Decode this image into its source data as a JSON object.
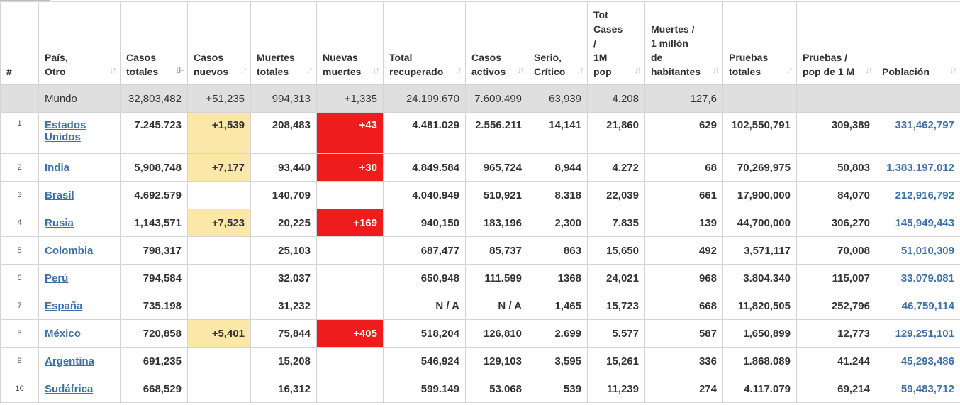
{
  "columns": [
    {
      "label_lines": [
        "#"
      ],
      "sort": ""
    },
    {
      "label_lines": [
        "País,",
        "Otro"
      ],
      "sort": "↓↑"
    },
    {
      "label_lines": [
        "Casos",
        "totales"
      ],
      "sort": "↓F"
    },
    {
      "label_lines": [
        "Casos",
        "nuevos"
      ],
      "sort": "↓↑"
    },
    {
      "label_lines": [
        "Muertes",
        "totales"
      ],
      "sort": "↓↑"
    },
    {
      "label_lines": [
        "Nuevas",
        "muertes"
      ],
      "sort": "↓↑"
    },
    {
      "label_lines": [
        "Total",
        "recuperado"
      ],
      "sort": "↓↑"
    },
    {
      "label_lines": [
        "Casos",
        "activos"
      ],
      "sort": "↓↑"
    },
    {
      "label_lines": [
        "Serio,",
        "Crítico"
      ],
      "sort": "↓↑"
    },
    {
      "label_lines": [
        "Tot",
        "Cases",
        "/",
        "1M",
        "pop"
      ],
      "sort": "↓↑"
    },
    {
      "label_lines": [
        "Muertes /",
        "1 millón",
        "de",
        "habitantes"
      ],
      "sort": "↓↑"
    },
    {
      "label_lines": [
        "Pruebas",
        "totales"
      ],
      "sort": "↓↑"
    },
    {
      "label_lines": [
        "Pruebas /",
        "pop de 1 M"
      ],
      "sort": "↓↑"
    },
    {
      "label_lines": [
        "Población"
      ],
      "sort": "↓↑"
    }
  ],
  "world": {
    "name": "Mundo",
    "total_cases": "32,803,482",
    "new_cases": "+51,235",
    "total_deaths": "994,313",
    "new_deaths": "+1,335",
    "total_recovered": "24.199.670",
    "active_cases": "7.609.499",
    "serious": "63,939",
    "cases_per_1m": "4.208",
    "deaths_per_1m": "127,6",
    "total_tests": "",
    "tests_per_1m": "",
    "population": ""
  },
  "rows": [
    {
      "rank": "1",
      "country": "Estados Unidos",
      "total_cases": "7.245.723",
      "new_cases": "+1,539",
      "total_deaths": "208,483",
      "new_deaths": "+43",
      "total_recovered": "4.481.029",
      "active_cases": "2.556.211",
      "serious": "14,141",
      "cases_per_1m": "21,860",
      "deaths_per_1m": "629",
      "total_tests": "102,550,791",
      "tests_per_1m": "309,389",
      "population": "331,462,797"
    },
    {
      "rank": "2",
      "country": "India",
      "total_cases": "5,908,748",
      "new_cases": "+7,177",
      "total_deaths": "93,440",
      "new_deaths": "+30",
      "total_recovered": "4.849.584",
      "active_cases": "965,724",
      "serious": "8,944",
      "cases_per_1m": "4.272",
      "deaths_per_1m": "68",
      "total_tests": "70,269,975",
      "tests_per_1m": "50,803",
      "population": "1.383.197.012"
    },
    {
      "rank": "3",
      "country": "Brasil",
      "total_cases": "4.692.579",
      "new_cases": "",
      "total_deaths": "140,709",
      "new_deaths": "",
      "total_recovered": "4.040.949",
      "active_cases": "510,921",
      "serious": "8.318",
      "cases_per_1m": "22,039",
      "deaths_per_1m": "661",
      "total_tests": "17,900,000",
      "tests_per_1m": "84,070",
      "population": "212,916,792"
    },
    {
      "rank": "4",
      "country": "Rusia",
      "total_cases": "1,143,571",
      "new_cases": "+7,523",
      "total_deaths": "20,225",
      "new_deaths": "+169",
      "total_recovered": "940,150",
      "active_cases": "183,196",
      "serious": "2,300",
      "cases_per_1m": "7.835",
      "deaths_per_1m": "139",
      "total_tests": "44,700,000",
      "tests_per_1m": "306,270",
      "population": "145,949,443"
    },
    {
      "rank": "5",
      "country": "Colombia",
      "total_cases": "798,317",
      "new_cases": "",
      "total_deaths": "25,103",
      "new_deaths": "",
      "total_recovered": "687,477",
      "active_cases": "85,737",
      "serious": "863",
      "cases_per_1m": "15,650",
      "deaths_per_1m": "492",
      "total_tests": "3,571,117",
      "tests_per_1m": "70,008",
      "population": "51,010,309"
    },
    {
      "rank": "6",
      "country": "Perú",
      "total_cases": "794,584",
      "new_cases": "",
      "total_deaths": "32.037",
      "new_deaths": "",
      "total_recovered": "650,948",
      "active_cases": "111.599",
      "serious": "1368",
      "cases_per_1m": "24,021",
      "deaths_per_1m": "968",
      "total_tests": "3.804.340",
      "tests_per_1m": "115,007",
      "population": "33.079.081"
    },
    {
      "rank": "7",
      "country": "España",
      "total_cases": "735.198",
      "new_cases": "",
      "total_deaths": "31,232",
      "new_deaths": "",
      "total_recovered": "N / A",
      "active_cases": "N / A",
      "serious": "1,465",
      "cases_per_1m": "15,723",
      "deaths_per_1m": "668",
      "total_tests": "11,820,505",
      "tests_per_1m": "252,796",
      "population": "46,759,114"
    },
    {
      "rank": "8",
      "country": "México",
      "total_cases": "720,858",
      "new_cases": "+5,401",
      "total_deaths": "75,844",
      "new_deaths": "+405",
      "total_recovered": "518,204",
      "active_cases": "126,810",
      "serious": "2.699",
      "cases_per_1m": "5.577",
      "deaths_per_1m": "587",
      "total_tests": "1,650,899",
      "tests_per_1m": "12,773",
      "population": "129,251,101"
    },
    {
      "rank": "9",
      "country": "Argentina",
      "total_cases": "691,235",
      "new_cases": "",
      "total_deaths": "15,208",
      "new_deaths": "",
      "total_recovered": "546,924",
      "active_cases": "129,103",
      "serious": "3,595",
      "cases_per_1m": "15,261",
      "deaths_per_1m": "336",
      "total_tests": "1.868.089",
      "tests_per_1m": "41.244",
      "population": "45,293,486"
    },
    {
      "rank": "10",
      "country": "Sudáfrica",
      "total_cases": "668,529",
      "new_cases": "",
      "total_deaths": "16,312",
      "new_deaths": "",
      "total_recovered": "599.149",
      "active_cases": "53.068",
      "serious": "539",
      "cases_per_1m": "11,239",
      "deaths_per_1m": "274",
      "total_tests": "4.117.079",
      "tests_per_1m": "69,214",
      "population": "59,483,712"
    }
  ]
}
